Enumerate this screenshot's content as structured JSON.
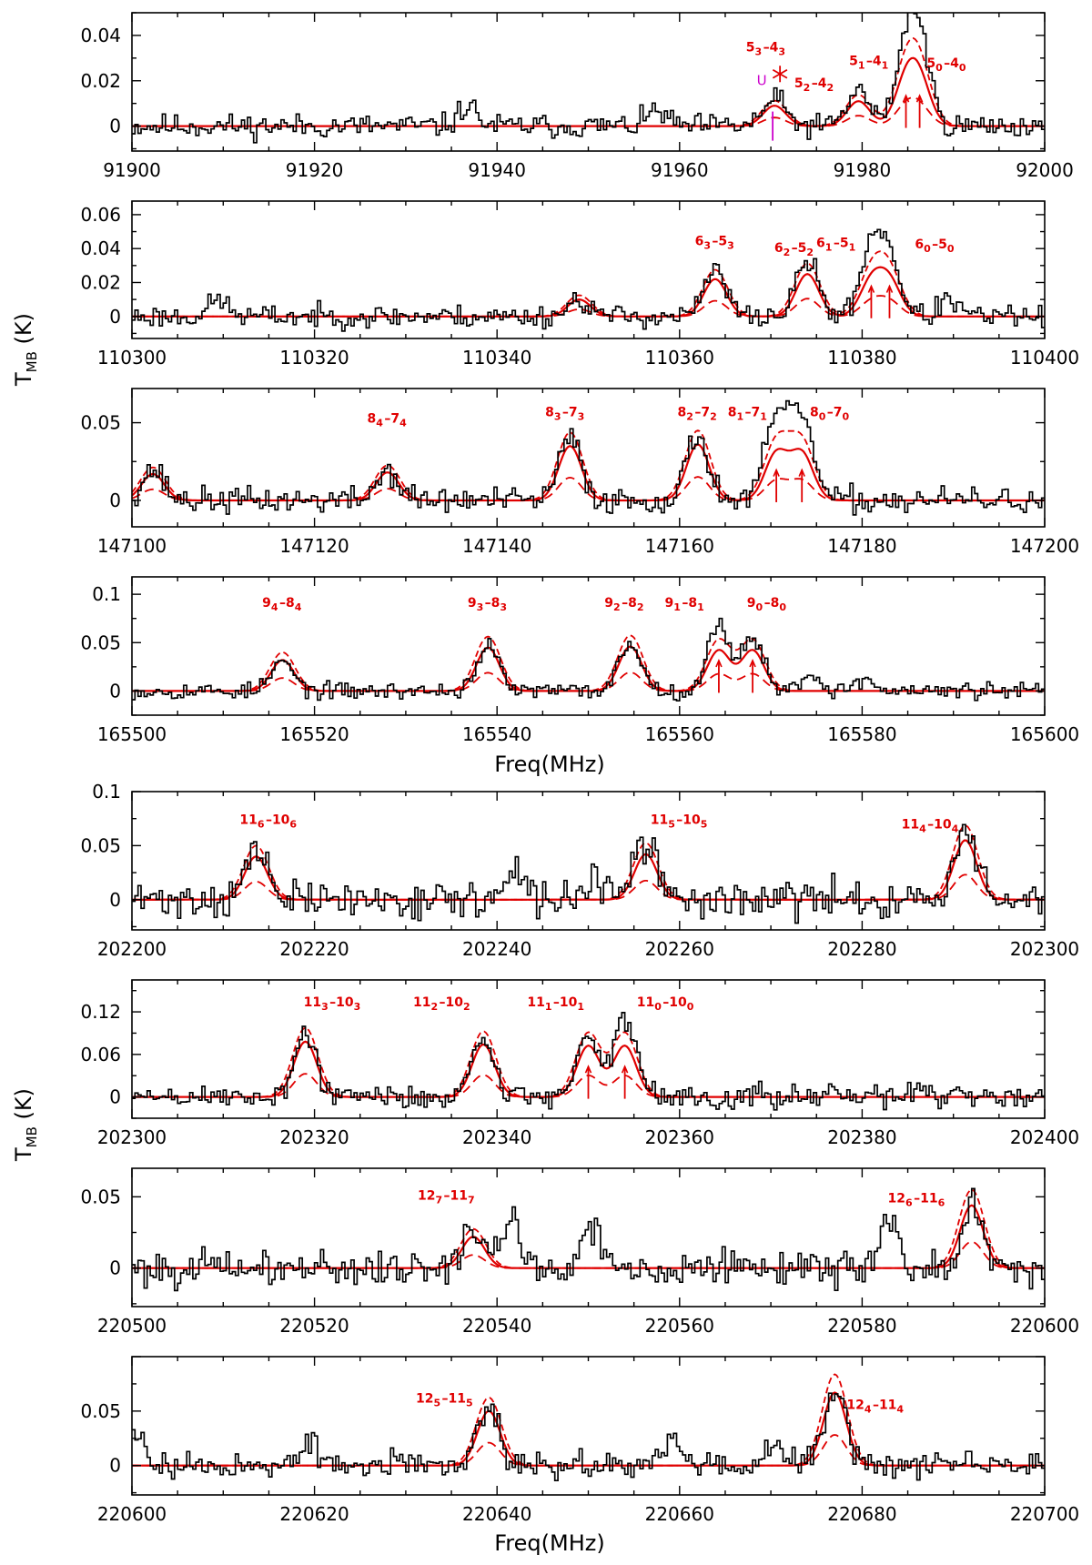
{
  "figure": {
    "y_axis_title_top": "T",
    "y_axis_title_bottom": "T",
    "y_axis_title_sub": "MB",
    "y_axis_title_unit": " (K)",
    "x_axis_title_top": "Freq(MHz)",
    "x_axis_title_bottom": "Freq(MHz)",
    "colors": {
      "observed": "#000000",
      "model": "#e00000",
      "marker": "#cc00cc"
    }
  },
  "chart_data": [
    {
      "type": "line",
      "id": "p1",
      "seed": 11,
      "noise": 0.0028,
      "xlim": [
        91900,
        92000
      ],
      "ylim": [
        -0.011,
        0.05
      ],
      "xticks": [
        91900,
        91920,
        91940,
        91960,
        91980,
        92000
      ],
      "yticks": [
        0,
        0.02,
        0.04
      ],
      "ytick_labels": [
        "0",
        "0.02",
        "0.04"
      ],
      "lines": [
        {
          "freq": 91970.4,
          "amp": 0.012,
          "model": 0.009,
          "label": "5_3–4_3",
          "label_at": [
            91969.5,
            0.033
          ]
        },
        {
          "freq": 91979.6,
          "amp": 0.016,
          "model": 0.011,
          "label": "5_2–4_2",
          "label_at": [
            91974.8,
            0.017
          ]
        },
        {
          "freq": 91984.8,
          "amp": 0.03,
          "model": 0.018,
          "label": "5_1–4_1",
          "label_at": [
            91980.8,
            0.027
          ]
        },
        {
          "freq": 91986.3,
          "amp": 0.034,
          "model": 0.018,
          "label": "5_0–4_0",
          "label_at": [
            91989.3,
            0.026
          ]
        }
      ],
      "arrows": [
        91984.8,
        91986.3
      ],
      "extra_peaks": [
        {
          "freq": 91936.8,
          "amp": 0.009
        },
        {
          "freq": 91957.5,
          "amp": 0.007
        }
      ],
      "markers": [
        {
          "kind": "u",
          "freq": 91969.0,
          "y": 0.018,
          "text": "U"
        },
        {
          "kind": "star",
          "freq": 91971.0,
          "y": 0.023
        }
      ]
    },
    {
      "type": "line",
      "id": "p2",
      "seed": 23,
      "noise": 0.0035,
      "xlim": [
        110300,
        110400
      ],
      "ylim": [
        -0.013,
        0.068
      ],
      "xticks": [
        110300,
        110320,
        110340,
        110360,
        110380,
        110400
      ],
      "yticks": [
        0,
        0.02,
        0.04,
        0.06
      ],
      "ytick_labels": [
        "0",
        "0.02",
        "0.04",
        "0.06"
      ],
      "lines": [
        {
          "freq": 110349.0,
          "amp": 0.01,
          "model": 0.01,
          "label": "",
          "label_at": [
            0,
            0
          ]
        },
        {
          "freq": 110363.9,
          "amp": 0.027,
          "model": 0.022,
          "label": "6_3–5_3",
          "label_at": [
            110363.9,
            0.042
          ]
        },
        {
          "freq": 110374.0,
          "amp": 0.033,
          "model": 0.025,
          "label": "6_2–5_2",
          "label_at": [
            110372.6,
            0.038
          ]
        },
        {
          "freq": 110381.0,
          "amp": 0.04,
          "model": 0.02,
          "label": "6_1–5_1",
          "label_at": [
            110377.2,
            0.041
          ]
        },
        {
          "freq": 110383.0,
          "amp": 0.033,
          "model": 0.02,
          "label": "6_0–5_0",
          "label_at": [
            110388.0,
            0.04
          ]
        }
      ],
      "arrows": [
        110381.0,
        110383.0
      ],
      "extra_peaks": [
        {
          "freq": 110309.5,
          "amp": 0.01
        },
        {
          "freq": 110389.5,
          "amp": 0.01
        }
      ],
      "markers": []
    },
    {
      "type": "line",
      "id": "p3",
      "seed": 37,
      "noise": 0.0045,
      "xlim": [
        147100,
        147200
      ],
      "ylim": [
        -0.017,
        0.072
      ],
      "xticks": [
        147100,
        147120,
        147140,
        147160,
        147180,
        147200
      ],
      "yticks": [
        0,
        0.05
      ],
      "ytick_labels": [
        "0",
        "0.05"
      ],
      "lines": [
        {
          "freq": 147102.3,
          "amp": 0.02,
          "model": 0.017,
          "label": "",
          "label_at": [
            0,
            0
          ]
        },
        {
          "freq": 147128.0,
          "amp": 0.019,
          "model": 0.018,
          "label": "8_4–7_4",
          "label_at": [
            147128.0,
            0.05
          ]
        },
        {
          "freq": 147148.0,
          "amp": 0.04,
          "model": 0.035,
          "label": "8_3–7_3",
          "label_at": [
            147147.5,
            0.054
          ]
        },
        {
          "freq": 147162.0,
          "amp": 0.042,
          "model": 0.036,
          "label": "8_2–7_2",
          "label_at": [
            147162.0,
            0.054
          ]
        },
        {
          "freq": 147170.6,
          "amp": 0.054,
          "model": 0.03,
          "label": "8_1–7_1",
          "label_at": [
            147167.5,
            0.054
          ]
        },
        {
          "freq": 147173.4,
          "amp": 0.056,
          "model": 0.03,
          "label": "8_0–7_0",
          "label_at": [
            147176.5,
            0.054
          ]
        }
      ],
      "arrows": [
        147170.6,
        147173.4
      ],
      "extra_peaks": [],
      "markers": []
    },
    {
      "type": "line",
      "id": "p4",
      "seed": 53,
      "noise": 0.0045,
      "xlim": [
        165500,
        165600
      ],
      "ylim": [
        -0.025,
        0.118
      ],
      "xticks": [
        165500,
        165520,
        165540,
        165560,
        165580,
        165600
      ],
      "yticks": [
        0,
        0.05,
        0.1
      ],
      "ytick_labels": [
        "0",
        "0.05",
        "0.1"
      ],
      "lines": [
        {
          "freq": 165516.5,
          "amp": 0.03,
          "model": 0.032,
          "label": "9_4–8_4",
          "label_at": [
            165516.5,
            0.087
          ]
        },
        {
          "freq": 165539.0,
          "amp": 0.046,
          "model": 0.045,
          "label": "9_3–8_3",
          "label_at": [
            165539.0,
            0.087
          ]
        },
        {
          "freq": 165554.6,
          "amp": 0.05,
          "model": 0.046,
          "label": "9_2–8_2",
          "label_at": [
            165554.0,
            0.087
          ]
        },
        {
          "freq": 165564.3,
          "amp": 0.068,
          "model": 0.042,
          "label": "9_1–8_1",
          "label_at": [
            165560.6,
            0.087
          ]
        },
        {
          "freq": 165568.0,
          "amp": 0.056,
          "model": 0.042,
          "label": "9_0–8_0",
          "label_at": [
            165569.6,
            0.087
          ]
        }
      ],
      "arrows": [
        165564.3,
        165568.0
      ],
      "extra_peaks": [
        {
          "freq": 165574.3,
          "amp": 0.018
        },
        {
          "freq": 165580.2,
          "amp": 0.012
        }
      ],
      "markers": []
    },
    {
      "type": "line",
      "id": "p5",
      "seed": 71,
      "noise": 0.009,
      "xlim": [
        202200,
        202300
      ],
      "ylim": [
        -0.028,
        0.1
      ],
      "xticks": [
        202200,
        202220,
        202240,
        202260,
        202280,
        202300
      ],
      "yticks": [
        0,
        0.05,
        0.1
      ],
      "ytick_labels": [
        "0",
        "0.05",
        "0.1"
      ],
      "lines": [
        {
          "freq": 202213.6,
          "amp": 0.046,
          "model": 0.04,
          "label": "11_6–10_6",
          "label_at": [
            202215.0,
            0.07
          ]
        },
        {
          "freq": 202256.3,
          "amp": 0.054,
          "model": 0.042,
          "label": "11_5–10_5",
          "label_at": [
            202260.0,
            0.07
          ]
        },
        {
          "freq": 202291.3,
          "amp": 0.062,
          "model": 0.055,
          "label": "11_4–10_4",
          "label_at": [
            202287.5,
            0.066
          ]
        }
      ],
      "arrows": [],
      "extra_peaks": [
        {
          "freq": 202242.0,
          "amp": 0.022
        },
        {
          "freq": 202250.5,
          "amp": 0.02
        }
      ],
      "markers": []
    },
    {
      "type": "line",
      "id": "p6",
      "seed": 89,
      "noise": 0.009,
      "xlim": [
        202300,
        202400
      ],
      "ylim": [
        -0.03,
        0.165
      ],
      "xticks": [
        202300,
        202320,
        202340,
        202360,
        202380,
        202400
      ],
      "yticks": [
        0,
        0.06,
        0.12
      ],
      "ytick_labels": [
        "0",
        "0.06",
        "0.12"
      ],
      "lines": [
        {
          "freq": 202319.0,
          "amp": 0.088,
          "model": 0.078,
          "label": "11_3–10_3",
          "label_at": [
            202322.0,
            0.128
          ]
        },
        {
          "freq": 202338.5,
          "amp": 0.085,
          "model": 0.074,
          "label": "11_2–10_2",
          "label_at": [
            202334.0,
            0.128
          ]
        },
        {
          "freq": 202350.0,
          "amp": 0.092,
          "model": 0.072,
          "label": "11_1–10_1",
          "label_at": [
            202346.5,
            0.128
          ]
        },
        {
          "freq": 202354.0,
          "amp": 0.11,
          "model": 0.072,
          "label": "11_0–10_0",
          "label_at": [
            202358.5,
            0.128
          ]
        }
      ],
      "arrows": [
        202350.0,
        202354.0
      ],
      "extra_peaks": [
        {
          "freq": 202386.0,
          "amp": 0.012
        }
      ],
      "markers": []
    },
    {
      "type": "line",
      "id": "p7",
      "seed": 101,
      "noise": 0.0065,
      "xlim": [
        220500,
        220600
      ],
      "ylim": [
        -0.027,
        0.07
      ],
      "xticks": [
        220500,
        220520,
        220540,
        220560,
        220580,
        220600
      ],
      "yticks": [
        0,
        0.05
      ],
      "ytick_labels": [
        "0",
        "0.05"
      ],
      "lines": [
        {
          "freq": 220537.4,
          "amp": 0.025,
          "model": 0.022,
          "label": "12_7–11_7",
          "label_at": [
            220534.5,
            0.048
          ]
        },
        {
          "freq": 220592.0,
          "amp": 0.04,
          "model": 0.044,
          "label": "12_6–11_6",
          "label_at": [
            220586.0,
            0.046
          ]
        }
      ],
      "arrows": [],
      "extra_peaks": [
        {
          "freq": 220541.5,
          "amp": 0.035
        },
        {
          "freq": 220550.3,
          "amp": 0.03
        },
        {
          "freq": 220583.0,
          "amp": 0.035
        }
      ],
      "markers": []
    },
    {
      "type": "line",
      "id": "p8",
      "seed": 127,
      "noise": 0.0065,
      "xlim": [
        220600,
        220700
      ],
      "ylim": [
        -0.027,
        0.1
      ],
      "xticks": [
        220600,
        220620,
        220640,
        220660,
        220680,
        220700
      ],
      "yticks": [
        0,
        0.05
      ],
      "ytick_labels": [
        "0",
        "0.05"
      ],
      "lines": [
        {
          "freq": 220639.1,
          "amp": 0.055,
          "model": 0.05,
          "label": "12_5–11_5",
          "label_at": [
            220634.3,
            0.058
          ]
        },
        {
          "freq": 220677.0,
          "amp": 0.072,
          "model": 0.067,
          "label": "12_4–11_4",
          "label_at": [
            220681.5,
            0.052
          ]
        }
      ],
      "arrows": [],
      "extra_peaks": [
        {
          "freq": 220600.5,
          "amp": 0.03
        },
        {
          "freq": 220619.5,
          "amp": 0.018
        },
        {
          "freq": 220659.0,
          "amp": 0.025
        },
        {
          "freq": 220670.5,
          "amp": 0.02
        }
      ],
      "markers": []
    }
  ]
}
